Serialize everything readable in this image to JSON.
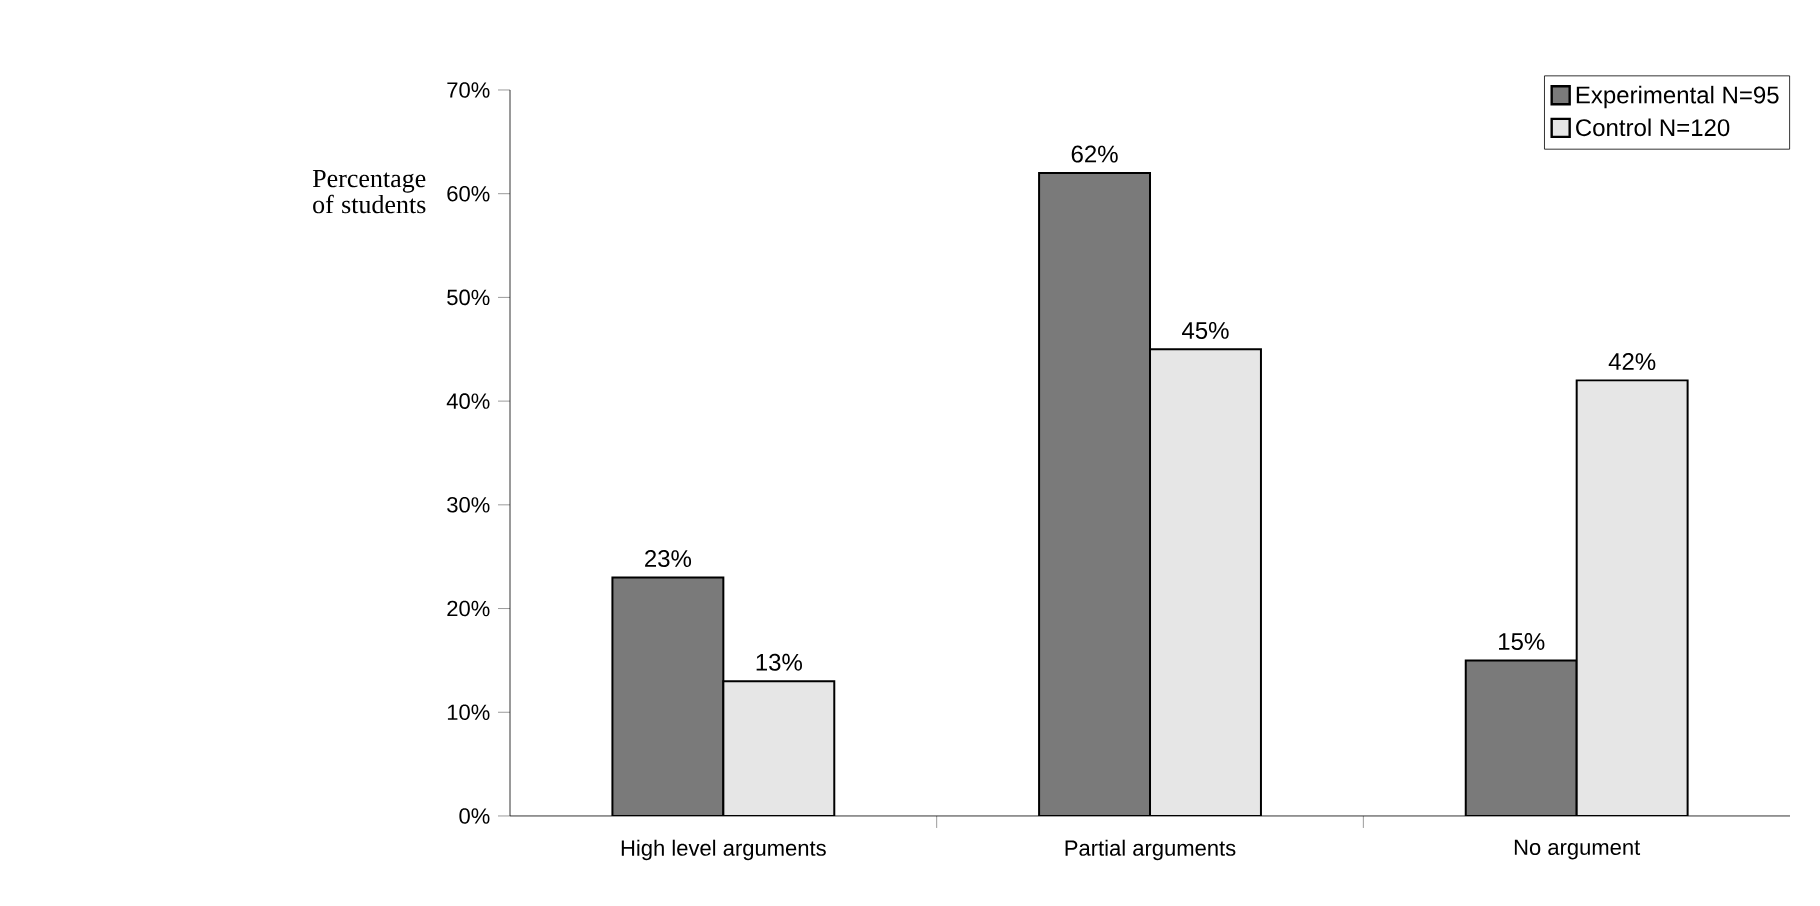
{
  "chart_data": {
    "type": "bar",
    "ylabel": "Percentage of students",
    "categories": [
      "High level arguments",
      "Partial arguments",
      "No argument"
    ],
    "series": [
      {
        "name": "Experimental N=95",
        "color": "#7a7a7a",
        "values": [
          23,
          62,
          15
        ],
        "value_labels": [
          "23%",
          "62%",
          "15%"
        ]
      },
      {
        "name": "Control N=120",
        "color": "#e6e6e6",
        "values": [
          13,
          45,
          42
        ],
        "value_labels": [
          "13%",
          "45%",
          "42%"
        ]
      }
    ],
    "ylim": [
      0,
      70
    ],
    "yticks": [
      {
        "value": 0,
        "label": "0%"
      },
      {
        "value": 10,
        "label": "10%"
      },
      {
        "value": 20,
        "label": "20%"
      },
      {
        "value": 30,
        "label": "30%"
      },
      {
        "value": 40,
        "label": "40%"
      },
      {
        "value": 50,
        "label": "50%"
      },
      {
        "value": 60,
        "label": "60%"
      },
      {
        "value": 70,
        "label": "70%"
      }
    ],
    "grid": false,
    "legend": "top right"
  }
}
